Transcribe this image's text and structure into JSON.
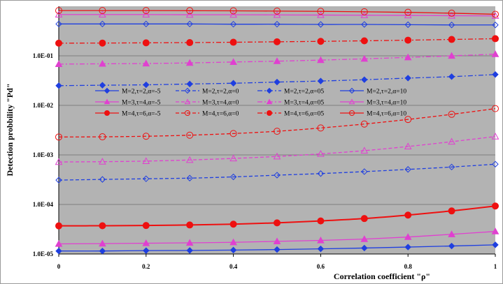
{
  "chart_data": {
    "type": "line",
    "xlabel": "Correlation coefficient \"ρ\"",
    "ylabel": "Detection probbility \"Pd\"",
    "x_scale": "linear",
    "y_scale": "log",
    "xlim": [
      0,
      1
    ],
    "ylim": [
      1e-05,
      1
    ],
    "x_ticks": [
      {
        "value": 0,
        "label": "0"
      },
      {
        "value": 0.2,
        "label": "0.2"
      },
      {
        "value": 0.4,
        "label": "0.4"
      },
      {
        "value": 0.6,
        "label": "0.6"
      },
      {
        "value": 0.8,
        "label": "0.8"
      },
      {
        "value": 1,
        "label": "1"
      }
    ],
    "y_ticks": [
      {
        "value": 1e-05,
        "label": "1.0E-05"
      },
      {
        "value": 0.0001,
        "label": "1.0E-04"
      },
      {
        "value": 0.001,
        "label": "1.0E-03"
      },
      {
        "value": 0.01,
        "label": "1.0E-02"
      },
      {
        "value": 0.1,
        "label": "1.0E-01"
      }
    ],
    "grid": "horizontal",
    "plot_background": "#b3b3b3",
    "legend_position": "center-left",
    "x": [
      0,
      0.1,
      0.2,
      0.3,
      0.4,
      0.5,
      0.6,
      0.7,
      0.8,
      0.9,
      1.0
    ],
    "series": [
      {
        "name": "M=2,τ=2,α=-5",
        "color": "#1f3fe0",
        "dash": "solid",
        "marker": "diamond",
        "filled": true,
        "values": [
          1.15e-05,
          1.15e-05,
          1.17e-05,
          1.18e-05,
          1.2e-05,
          1.23e-05,
          1.27e-05,
          1.32e-05,
          1.38e-05,
          1.45e-05,
          1.53e-05
        ]
      },
      {
        "name": "M=2,τ=2,α=0",
        "color": "#1f3fe0",
        "dash": "dash",
        "marker": "diamond",
        "filled": false,
        "values": [
          0.00031,
          0.00032,
          0.00033,
          0.00034,
          0.00036,
          0.00039,
          0.00042,
          0.00046,
          0.00051,
          0.00057,
          0.00065
        ]
      },
      {
        "name": "M=2,τ=2,α=05",
        "color": "#1f3fe0",
        "dash": "dashdot",
        "marker": "diamond",
        "filled": true,
        "values": [
          0.025,
          0.0255,
          0.026,
          0.027,
          0.028,
          0.0295,
          0.031,
          0.033,
          0.0355,
          0.038,
          0.042
        ]
      },
      {
        "name": "M=2,τ=2,α=10",
        "color": "#1f3fe0",
        "dash": "solid",
        "marker": "diamond",
        "filled": false,
        "values": [
          0.44,
          0.44,
          0.44,
          0.44,
          0.435,
          0.435,
          0.43,
          0.43,
          0.425,
          0.42,
          0.42
        ]
      },
      {
        "name": "M=3,τ=4,α=-5",
        "color": "#e040d0",
        "dash": "solid",
        "marker": "triangle",
        "filled": true,
        "values": [
          1.6e-05,
          1.62e-05,
          1.65e-05,
          1.68e-05,
          1.72e-05,
          1.8e-05,
          1.88e-05,
          2e-05,
          2.2e-05,
          2.5e-05,
          2.85e-05
        ]
      },
      {
        "name": "M=3,τ=4,α=0",
        "color": "#e040d0",
        "dash": "dash",
        "marker": "triangle",
        "filled": false,
        "values": [
          0.00072,
          0.00073,
          0.00075,
          0.00079,
          0.00085,
          0.00093,
          0.00105,
          0.00122,
          0.00148,
          0.00185,
          0.00235
        ]
      },
      {
        "name": "M=3,τ=4,α=05",
        "color": "#e040d0",
        "dash": "dashdot",
        "marker": "triangle",
        "filled": true,
        "values": [
          0.068,
          0.069,
          0.07,
          0.072,
          0.075,
          0.078,
          0.082,
          0.087,
          0.093,
          0.1,
          0.108
        ]
      },
      {
        "name": "M=3,τ=4,α=10",
        "color": "#e040d0",
        "dash": "solid",
        "marker": "triangle",
        "filled": false,
        "values": [
          0.68,
          0.68,
          0.68,
          0.675,
          0.675,
          0.67,
          0.665,
          0.66,
          0.655,
          0.645,
          0.64
        ]
      },
      {
        "name": "M=4,τ=6,α=-5",
        "color": "#ee1010",
        "dash": "solid",
        "marker": "circle",
        "filled": true,
        "values": [
          3.7e-05,
          3.72e-05,
          3.76e-05,
          3.85e-05,
          4e-05,
          4.25e-05,
          4.65e-05,
          5.2e-05,
          6.1e-05,
          7.4e-05,
          9.3e-05
        ]
      },
      {
        "name": "M=4,τ=6,α=0",
        "color": "#ee1010",
        "dash": "dash",
        "marker": "circle",
        "filled": false,
        "values": [
          0.0023,
          0.00232,
          0.00238,
          0.0025,
          0.0027,
          0.003,
          0.0035,
          0.0042,
          0.0052,
          0.0066,
          0.0086
        ]
      },
      {
        "name": "M=4,τ=6,α=05",
        "color": "#ee1010",
        "dash": "dashdot",
        "marker": "circle",
        "filled": true,
        "values": [
          0.18,
          0.181,
          0.183,
          0.185,
          0.188,
          0.192,
          0.196,
          0.201,
          0.207,
          0.214,
          0.222
        ]
      },
      {
        "name": "M=4,τ=6,α=10",
        "color": "#ee1010",
        "dash": "solid",
        "marker": "circle",
        "filled": false,
        "values": [
          0.82,
          0.82,
          0.82,
          0.815,
          0.81,
          0.8,
          0.79,
          0.775,
          0.755,
          0.725,
          0.69
        ]
      }
    ]
  }
}
